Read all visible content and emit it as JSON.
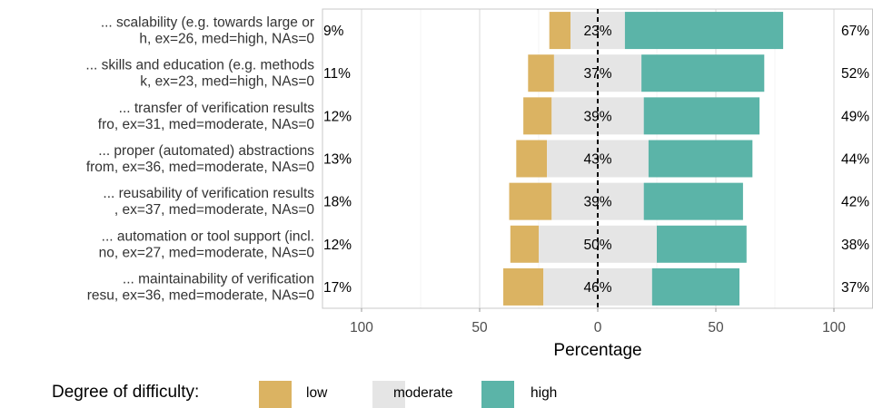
{
  "chart_data": {
    "type": "bar",
    "orientation": "horizontal-diverging",
    "categories": [
      [
        "... scalability (e.g. towards large or",
        "h, ex=26, med=high, NAs=0"
      ],
      [
        "... skills and education (e.g. methods",
        "k, ex=23, med=high, NAs=0"
      ],
      [
        "... transfer of verification results",
        "fro, ex=31, med=moderate, NAs=0"
      ],
      [
        "... proper (automated) abstractions",
        "from, ex=36, med=moderate, NAs=0"
      ],
      [
        "... reusability of verification results",
        ", ex=37, med=moderate, NAs=0"
      ],
      [
        "... automation or tool support (incl.",
        "no, ex=27, med=moderate, NAs=0"
      ],
      [
        "... maintainability of verification",
        "resu, ex=36, med=moderate, NAs=0"
      ]
    ],
    "series": [
      {
        "name": "low",
        "color": "#dbb362",
        "values": [
          9,
          11,
          12,
          13,
          18,
          12,
          17
        ]
      },
      {
        "name": "moderate",
        "color": "#e5e5e5",
        "values": [
          23,
          37,
          39,
          43,
          39,
          50,
          46
        ]
      },
      {
        "name": "high",
        "color": "#5bb4a8",
        "values": [
          67,
          52,
          49,
          44,
          42,
          38,
          37
        ]
      }
    ],
    "left_labels": [
      "9%",
      "11%",
      "12%",
      "13%",
      "18%",
      "12%",
      "17%"
    ],
    "center_labels": [
      "23%",
      "37%",
      "39%",
      "43%",
      "39%",
      "50%",
      "46%"
    ],
    "right_labels": [
      "67%",
      "52%",
      "49%",
      "44%",
      "42%",
      "38%",
      "37%"
    ],
    "xlabel": "Percentage",
    "xlim": [
      -115,
      115
    ],
    "xticks": [
      -100,
      -50,
      0,
      50,
      100
    ],
    "xtick_labels": [
      "100",
      "50",
      "0",
      "50",
      "100"
    ],
    "grid": true,
    "zero_line": "dashed",
    "legend": {
      "title": "Degree of difficulty:",
      "position": "bottom",
      "entries": [
        "low",
        "moderate",
        "high"
      ]
    }
  }
}
